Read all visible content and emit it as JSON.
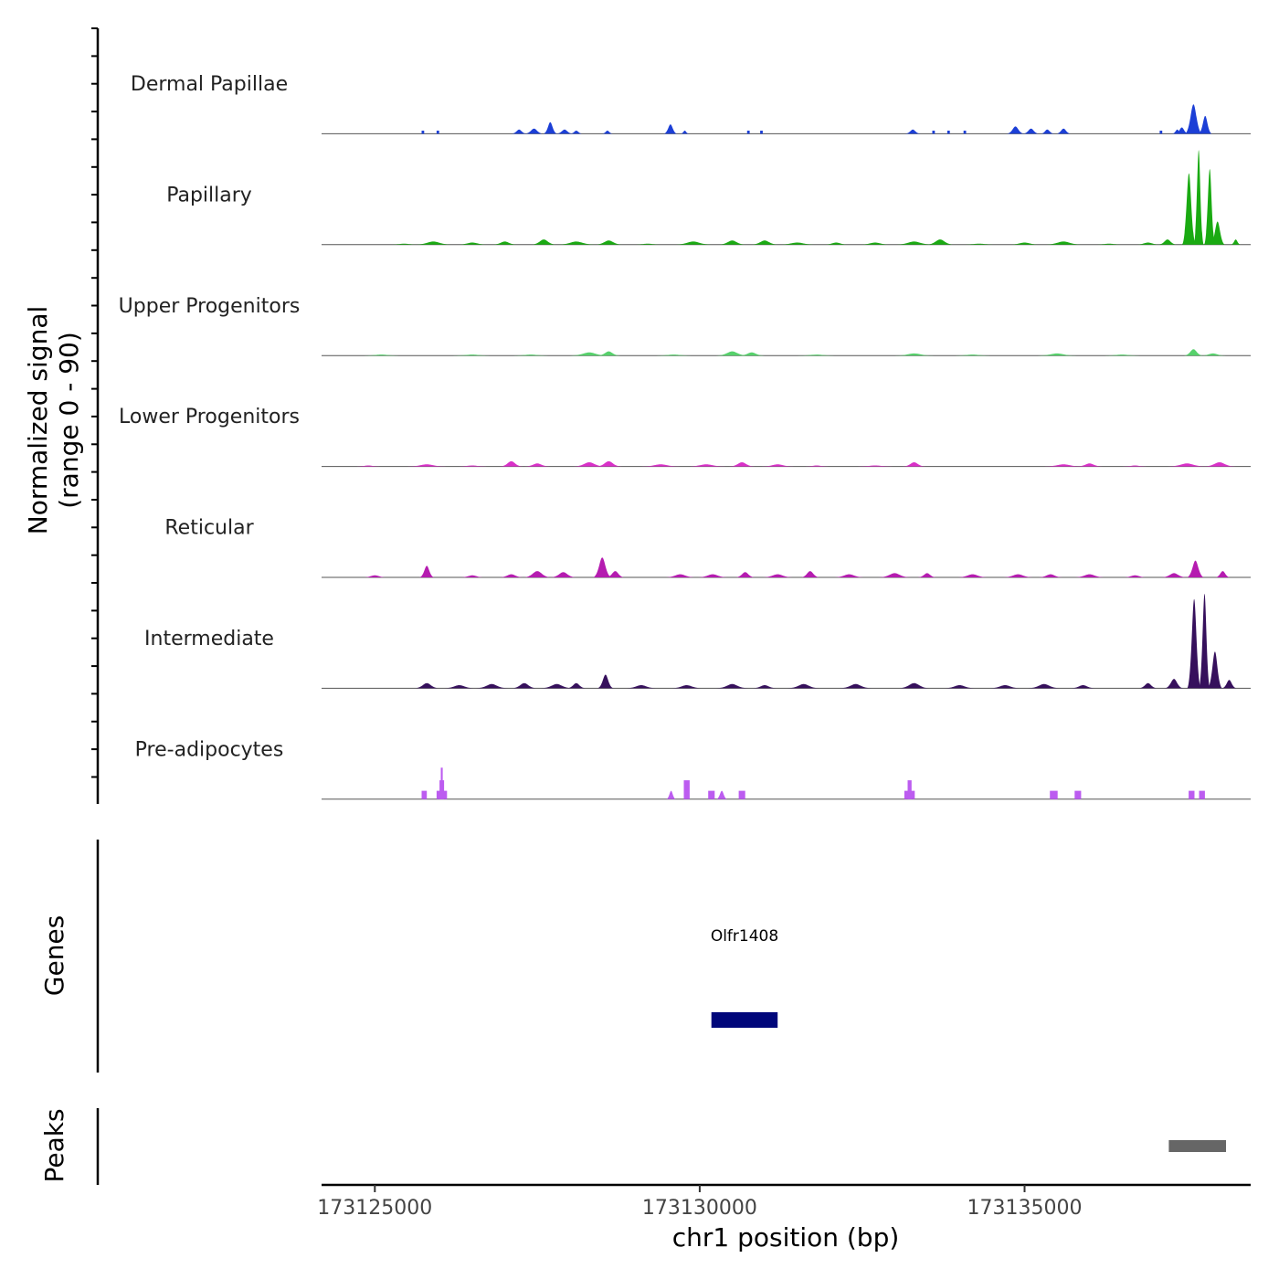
{
  "chart_data": {
    "type": "area",
    "title": "",
    "ylabel_lines": [
      "Normalized signal",
      "(range 0 - 90)"
    ],
    "xlabel": "chr1 position (bp)",
    "xlim": [
      173124180,
      173138480
    ],
    "ylim": [
      0,
      90
    ],
    "x_ticks": [
      173125000,
      173130000,
      173135000
    ],
    "x_tick_labels": [
      "173125000",
      "173130000",
      "173135000"
    ],
    "tracks": [
      {
        "name": "Dermal Papillae",
        "color": "#1c3fd6",
        "peaks": [
          {
            "x": 173125740,
            "y": 3,
            "w": 40,
            "shape": "block"
          },
          {
            "x": 173125970,
            "y": 3,
            "w": 40,
            "shape": "block"
          },
          {
            "x": 173127220,
            "y": 4,
            "w": 120
          },
          {
            "x": 173127450,
            "y": 5,
            "w": 150
          },
          {
            "x": 173127700,
            "y": 11,
            "w": 110
          },
          {
            "x": 173127920,
            "y": 4,
            "w": 130
          },
          {
            "x": 173128100,
            "y": 3,
            "w": 100
          },
          {
            "x": 173128580,
            "y": 3,
            "w": 90
          },
          {
            "x": 173129550,
            "y": 9,
            "w": 110
          },
          {
            "x": 173129770,
            "y": 3,
            "w": 70
          },
          {
            "x": 173130750,
            "y": 3,
            "w": 40,
            "shape": "block"
          },
          {
            "x": 173130950,
            "y": 3,
            "w": 40,
            "shape": "block"
          },
          {
            "x": 173133280,
            "y": 4,
            "w": 120
          },
          {
            "x": 173133600,
            "y": 3,
            "w": 40,
            "shape": "block"
          },
          {
            "x": 173133830,
            "y": 3,
            "w": 40,
            "shape": "block"
          },
          {
            "x": 173134080,
            "y": 3,
            "w": 40,
            "shape": "block"
          },
          {
            "x": 173134860,
            "y": 7,
            "w": 140
          },
          {
            "x": 173135100,
            "y": 5,
            "w": 130
          },
          {
            "x": 173135350,
            "y": 4,
            "w": 110
          },
          {
            "x": 173135600,
            "y": 5,
            "w": 120
          },
          {
            "x": 173137100,
            "y": 3,
            "w": 40,
            "shape": "block"
          },
          {
            "x": 173137350,
            "y": 4,
            "w": 80
          },
          {
            "x": 173137600,
            "y": 28,
            "w": 140
          },
          {
            "x": 173137780,
            "y": 17,
            "w": 110
          },
          {
            "x": 173137420,
            "y": 6,
            "w": 110
          }
        ]
      },
      {
        "name": "Papillary",
        "color": "#1aaa12",
        "peaks": [
          {
            "x": 173125450,
            "y": 1,
            "w": 250
          },
          {
            "x": 173125900,
            "y": 3,
            "w": 300
          },
          {
            "x": 173126500,
            "y": 2,
            "w": 250
          },
          {
            "x": 173127000,
            "y": 3,
            "w": 200
          },
          {
            "x": 173127600,
            "y": 5,
            "w": 200
          },
          {
            "x": 173128100,
            "y": 3,
            "w": 300
          },
          {
            "x": 173128600,
            "y": 4,
            "w": 220
          },
          {
            "x": 173129200,
            "y": 1,
            "w": 250
          },
          {
            "x": 173129900,
            "y": 3,
            "w": 300
          },
          {
            "x": 173130500,
            "y": 4,
            "w": 220
          },
          {
            "x": 173131000,
            "y": 4,
            "w": 220
          },
          {
            "x": 173131500,
            "y": 2,
            "w": 300
          },
          {
            "x": 173132100,
            "y": 2,
            "w": 200
          },
          {
            "x": 173132700,
            "y": 2,
            "w": 250
          },
          {
            "x": 173133300,
            "y": 3,
            "w": 300
          },
          {
            "x": 173133700,
            "y": 5,
            "w": 220
          },
          {
            "x": 173134300,
            "y": 1,
            "w": 300
          },
          {
            "x": 173135000,
            "y": 2,
            "w": 250
          },
          {
            "x": 173135600,
            "y": 3,
            "w": 300
          },
          {
            "x": 173136300,
            "y": 1,
            "w": 250
          },
          {
            "x": 173136900,
            "y": 2,
            "w": 200
          },
          {
            "x": 173137200,
            "y": 5,
            "w": 150
          },
          {
            "x": 173137530,
            "y": 68,
            "w": 110
          },
          {
            "x": 173137680,
            "y": 90,
            "w": 80
          },
          {
            "x": 173137850,
            "y": 72,
            "w": 90
          },
          {
            "x": 173137970,
            "y": 22,
            "w": 120
          },
          {
            "x": 173138250,
            "y": 5,
            "w": 80
          }
        ]
      },
      {
        "name": "Upper Progenitors",
        "color": "#56d16b",
        "peaks": [
          {
            "x": 173125100,
            "y": 1,
            "w": 300
          },
          {
            "x": 173126500,
            "y": 1,
            "w": 300
          },
          {
            "x": 173127400,
            "y": 1,
            "w": 300
          },
          {
            "x": 173128300,
            "y": 3,
            "w": 300
          },
          {
            "x": 173128600,
            "y": 4,
            "w": 180
          },
          {
            "x": 173129600,
            "y": 1,
            "w": 300
          },
          {
            "x": 173130500,
            "y": 4,
            "w": 250
          },
          {
            "x": 173130800,
            "y": 3,
            "w": 200
          },
          {
            "x": 173131800,
            "y": 1,
            "w": 300
          },
          {
            "x": 173133300,
            "y": 2,
            "w": 300
          },
          {
            "x": 173134200,
            "y": 1,
            "w": 300
          },
          {
            "x": 173135500,
            "y": 2,
            "w": 300
          },
          {
            "x": 173136500,
            "y": 1,
            "w": 300
          },
          {
            "x": 173137600,
            "y": 6,
            "w": 150
          },
          {
            "x": 173137900,
            "y": 2,
            "w": 200
          }
        ]
      },
      {
        "name": "Lower Progenitors",
        "color": "#d930c8",
        "peaks": [
          {
            "x": 173124900,
            "y": 1,
            "w": 200
          },
          {
            "x": 173125800,
            "y": 2,
            "w": 300
          },
          {
            "x": 173126500,
            "y": 1,
            "w": 250
          },
          {
            "x": 173127100,
            "y": 5,
            "w": 180
          },
          {
            "x": 173127500,
            "y": 3,
            "w": 200
          },
          {
            "x": 173128300,
            "y": 4,
            "w": 250
          },
          {
            "x": 173128600,
            "y": 5,
            "w": 200
          },
          {
            "x": 173129400,
            "y": 2,
            "w": 300
          },
          {
            "x": 173130100,
            "y": 2,
            "w": 300
          },
          {
            "x": 173130650,
            "y": 4,
            "w": 200
          },
          {
            "x": 173131200,
            "y": 2,
            "w": 250
          },
          {
            "x": 173131800,
            "y": 1,
            "w": 200
          },
          {
            "x": 173132700,
            "y": 1,
            "w": 300
          },
          {
            "x": 173133300,
            "y": 4,
            "w": 180
          },
          {
            "x": 173135600,
            "y": 2,
            "w": 300
          },
          {
            "x": 173136000,
            "y": 3,
            "w": 200
          },
          {
            "x": 173136700,
            "y": 1,
            "w": 200
          },
          {
            "x": 173137500,
            "y": 3,
            "w": 300
          },
          {
            "x": 173138000,
            "y": 4,
            "w": 250
          }
        ]
      },
      {
        "name": "Reticular",
        "color": "#b51cb0",
        "peaks": [
          {
            "x": 173125000,
            "y": 2,
            "w": 200
          },
          {
            "x": 173125800,
            "y": 11,
            "w": 120
          },
          {
            "x": 173126500,
            "y": 2,
            "w": 200
          },
          {
            "x": 173127100,
            "y": 3,
            "w": 200
          },
          {
            "x": 173127500,
            "y": 6,
            "w": 220
          },
          {
            "x": 173127900,
            "y": 5,
            "w": 200
          },
          {
            "x": 173128500,
            "y": 19,
            "w": 150
          },
          {
            "x": 173128700,
            "y": 6,
            "w": 150
          },
          {
            "x": 173129700,
            "y": 3,
            "w": 250
          },
          {
            "x": 173130200,
            "y": 3,
            "w": 250
          },
          {
            "x": 173130700,
            "y": 5,
            "w": 150
          },
          {
            "x": 173131200,
            "y": 3,
            "w": 250
          },
          {
            "x": 173131700,
            "y": 6,
            "w": 150
          },
          {
            "x": 173132300,
            "y": 3,
            "w": 250
          },
          {
            "x": 173133000,
            "y": 4,
            "w": 250
          },
          {
            "x": 173133500,
            "y": 4,
            "w": 150
          },
          {
            "x": 173134200,
            "y": 3,
            "w": 250
          },
          {
            "x": 173134900,
            "y": 3,
            "w": 250
          },
          {
            "x": 173135400,
            "y": 3,
            "w": 200
          },
          {
            "x": 173136000,
            "y": 3,
            "w": 250
          },
          {
            "x": 173136700,
            "y": 2,
            "w": 200
          },
          {
            "x": 173137300,
            "y": 4,
            "w": 200
          },
          {
            "x": 173137630,
            "y": 16,
            "w": 140
          },
          {
            "x": 173138050,
            "y": 6,
            "w": 120
          }
        ]
      },
      {
        "name": "Intermediate",
        "color": "#36105c",
        "peaks": [
          {
            "x": 173125800,
            "y": 5,
            "w": 200
          },
          {
            "x": 173126300,
            "y": 3,
            "w": 250
          },
          {
            "x": 173126800,
            "y": 4,
            "w": 250
          },
          {
            "x": 173127300,
            "y": 5,
            "w": 200
          },
          {
            "x": 173127800,
            "y": 4,
            "w": 250
          },
          {
            "x": 173128100,
            "y": 5,
            "w": 150
          },
          {
            "x": 173128550,
            "y": 13,
            "w": 130
          },
          {
            "x": 173129100,
            "y": 3,
            "w": 250
          },
          {
            "x": 173129800,
            "y": 3,
            "w": 250
          },
          {
            "x": 173130500,
            "y": 4,
            "w": 250
          },
          {
            "x": 173131000,
            "y": 3,
            "w": 200
          },
          {
            "x": 173131600,
            "y": 4,
            "w": 250
          },
          {
            "x": 173132400,
            "y": 4,
            "w": 250
          },
          {
            "x": 173133300,
            "y": 5,
            "w": 250
          },
          {
            "x": 173134000,
            "y": 3,
            "w": 250
          },
          {
            "x": 173134700,
            "y": 3,
            "w": 250
          },
          {
            "x": 173135300,
            "y": 4,
            "w": 250
          },
          {
            "x": 173135900,
            "y": 3,
            "w": 200
          },
          {
            "x": 173136900,
            "y": 5,
            "w": 150
          },
          {
            "x": 173137300,
            "y": 9,
            "w": 150
          },
          {
            "x": 173137610,
            "y": 85,
            "w": 110
          },
          {
            "x": 173137770,
            "y": 90,
            "w": 90
          },
          {
            "x": 173137930,
            "y": 35,
            "w": 120
          },
          {
            "x": 173138150,
            "y": 8,
            "w": 120
          }
        ]
      },
      {
        "name": "Pre-adipocytes",
        "color": "#bc5cf0",
        "peaks": [
          {
            "x": 173125760,
            "y": 8,
            "w": 80,
            "shape": "block"
          },
          {
            "x": 173126030,
            "y": 30,
            "w": 30,
            "shape": "block"
          },
          {
            "x": 173126030,
            "y": 18,
            "w": 70,
            "shape": "block"
          },
          {
            "x": 173126030,
            "y": 8,
            "w": 160,
            "shape": "block"
          },
          {
            "x": 173129560,
            "y": 8,
            "w": 80
          },
          {
            "x": 173129800,
            "y": 18,
            "w": 90,
            "shape": "block"
          },
          {
            "x": 173130180,
            "y": 8,
            "w": 100,
            "shape": "block"
          },
          {
            "x": 173130340,
            "y": 8,
            "w": 90
          },
          {
            "x": 173130650,
            "y": 8,
            "w": 100,
            "shape": "block"
          },
          {
            "x": 173133230,
            "y": 18,
            "w": 60,
            "shape": "block"
          },
          {
            "x": 173133230,
            "y": 8,
            "w": 160,
            "shape": "block"
          },
          {
            "x": 173135450,
            "y": 8,
            "w": 120,
            "shape": "block"
          },
          {
            "x": 173135820,
            "y": 8,
            "w": 100,
            "shape": "block"
          },
          {
            "x": 173137570,
            "y": 8,
            "w": 90,
            "shape": "block"
          },
          {
            "x": 173137730,
            "y": 8,
            "w": 90,
            "shape": "block"
          }
        ]
      }
    ],
    "genes": [
      {
        "name": "Olfr1408",
        "start": 173130180,
        "end": 173131200,
        "color": "#00067a"
      }
    ],
    "peaks_track": {
      "label": "Peaks",
      "color": "#666666",
      "intervals": [
        {
          "start": 173137220,
          "end": 173138100
        }
      ]
    },
    "panel_labels": {
      "genes": "Genes",
      "peaks": "Peaks"
    }
  }
}
